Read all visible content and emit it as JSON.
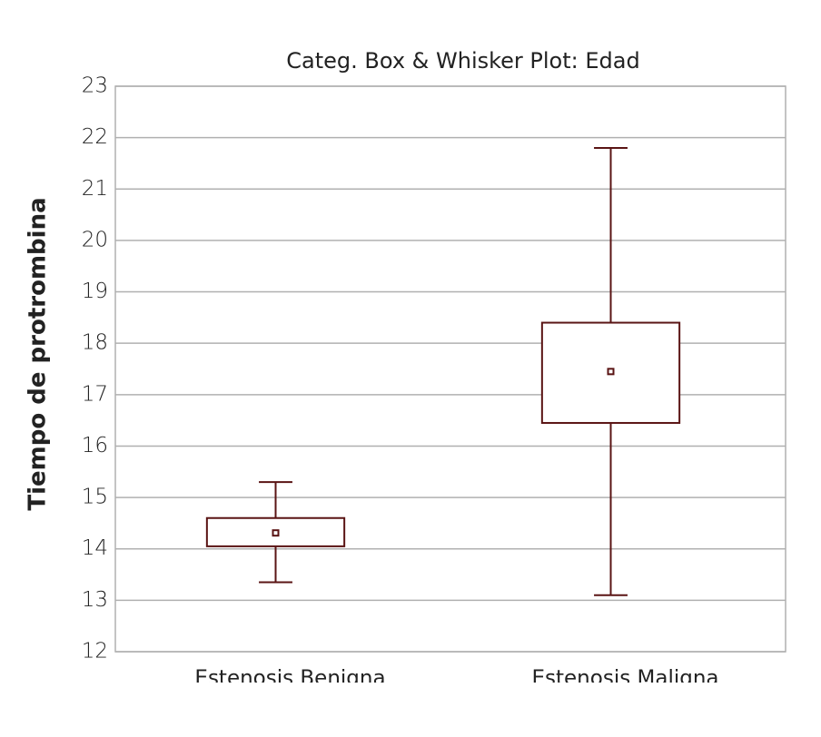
{
  "chart_data": {
    "type": "box",
    "title": "Categ. Box & Whisker Plot: Edad",
    "y_label": "Tiempo de protrombina",
    "categories": [
      "Estenosis Benigna",
      "Estenosis Maligna"
    ],
    "boxes": [
      {
        "min": 13.35,
        "q1": 14.05,
        "mean": 14.31,
        "q3": 14.6,
        "max": 15.3
      },
      {
        "min": 13.1,
        "q1": 16.45,
        "mean": 17.45,
        "q3": 18.4,
        "max": 21.8
      }
    ],
    "color": "#5a1414",
    "ylim": [
      12,
      23
    ],
    "yticks": [
      12,
      13,
      14,
      15,
      16,
      17,
      18,
      19,
      20,
      21,
      22,
      23
    ],
    "grid": true
  }
}
